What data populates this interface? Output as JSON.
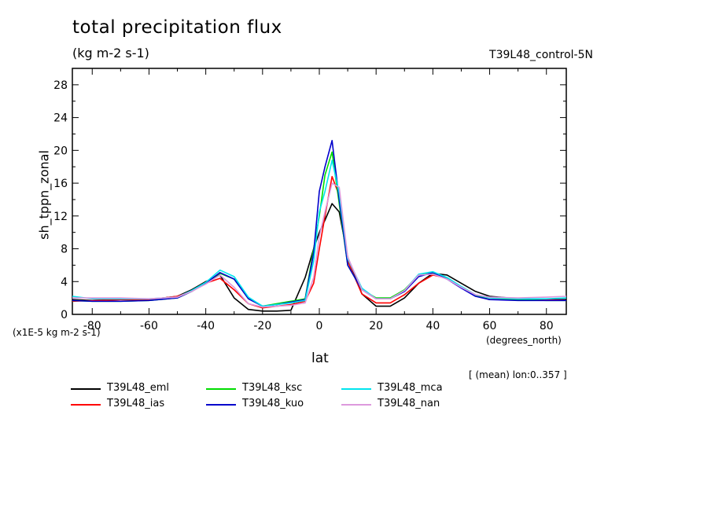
{
  "chart_data": {
    "type": "line",
    "title": "total precipitation flux",
    "subtitle": "(kg m-2 s-1)",
    "run_label": "T39L48_control-5N",
    "xlabel": "lat",
    "ylabel": "sh_tppn_zonal",
    "x_units": "(degrees_north)",
    "y_units": "(x1E-5 kg m-2 s-1)",
    "note": "[ (mean) lon:0..357 ]",
    "xlim": [
      -87,
      87
    ],
    "ylim": [
      0,
      30
    ],
    "xticks": [
      -80,
      -60,
      -40,
      -20,
      0,
      20,
      40,
      60,
      80
    ],
    "yticks": [
      0,
      4,
      8,
      12,
      16,
      20,
      24,
      28
    ],
    "grid": false,
    "legend_position": "below",
    "x": [
      -87,
      -80,
      -70,
      -60,
      -50,
      -45,
      -40,
      -35,
      -30,
      -25,
      -20,
      -15,
      -10,
      -5,
      -2,
      0,
      2,
      4.5,
      7,
      10,
      15,
      20,
      25,
      30,
      35,
      40,
      45,
      50,
      55,
      60,
      70,
      80,
      87
    ],
    "series": [
      {
        "name": "T39L48_eml",
        "color": "#000000",
        "values": [
          1.8,
          1.7,
          1.8,
          1.8,
          2.2,
          3.0,
          4.0,
          4.8,
          2.0,
          0.6,
          0.4,
          0.4,
          0.5,
          4.5,
          8.0,
          10.0,
          11.5,
          13.5,
          12.5,
          7.0,
          2.5,
          1.0,
          1.0,
          2.0,
          3.8,
          5.0,
          4.8,
          3.8,
          2.8,
          2.2,
          1.9,
          1.8,
          1.8
        ]
      },
      {
        "name": "T39L48_ias",
        "color": "#ff0000",
        "values": [
          1.6,
          1.7,
          1.8,
          1.8,
          2.2,
          2.8,
          3.8,
          4.4,
          3.0,
          1.3,
          0.8,
          1.0,
          1.2,
          1.6,
          3.8,
          8.0,
          12.0,
          16.8,
          14.5,
          6.5,
          2.5,
          1.4,
          1.4,
          2.4,
          3.8,
          4.8,
          4.4,
          3.3,
          2.3,
          1.8,
          1.8,
          1.8,
          1.7
        ]
      },
      {
        "name": "T39L48_ksc",
        "color": "#00dd00",
        "values": [
          1.7,
          1.6,
          1.6,
          1.7,
          2.0,
          2.8,
          3.8,
          5.0,
          4.3,
          2.0,
          1.0,
          1.3,
          1.6,
          1.9,
          8.0,
          12.0,
          17.0,
          19.8,
          13.5,
          6.0,
          3.0,
          2.0,
          2.0,
          3.0,
          4.8,
          5.0,
          4.4,
          3.3,
          2.3,
          1.8,
          1.8,
          1.7,
          1.7
        ]
      },
      {
        "name": "T39L48_kuo",
        "color": "#0000cc",
        "values": [
          1.7,
          1.6,
          1.6,
          1.7,
          2.0,
          2.8,
          3.8,
          5.1,
          4.3,
          1.9,
          1.0,
          1.2,
          1.5,
          1.8,
          7.5,
          15.0,
          18.0,
          21.2,
          14.0,
          6.0,
          3.0,
          1.9,
          1.9,
          2.8,
          4.6,
          5.1,
          4.3,
          3.2,
          2.2,
          1.8,
          1.7,
          1.7,
          1.7
        ]
      },
      {
        "name": "T39L48_mca",
        "color": "#00e5ee",
        "values": [
          2.2,
          1.9,
          1.9,
          1.9,
          2.1,
          2.9,
          3.9,
          5.4,
          4.6,
          2.1,
          1.0,
          1.2,
          1.4,
          1.7,
          6.5,
          12.5,
          15.0,
          18.8,
          14.8,
          6.8,
          3.2,
          1.9,
          1.9,
          2.9,
          4.9,
          5.2,
          4.5,
          3.4,
          2.4,
          2.0,
          1.9,
          1.9,
          2.0
        ]
      },
      {
        "name": "T39L48_nan",
        "color": "#dd99dd",
        "values": [
          2.0,
          2.0,
          2.0,
          1.9,
          2.1,
          2.8,
          3.7,
          4.8,
          3.3,
          1.3,
          0.9,
          1.0,
          1.1,
          1.4,
          4.5,
          9.5,
          12.5,
          16.0,
          15.5,
          7.0,
          3.0,
          1.9,
          1.9,
          2.9,
          4.8,
          4.9,
          4.3,
          3.3,
          2.4,
          2.1,
          2.0,
          2.1,
          2.2
        ]
      }
    ]
  }
}
